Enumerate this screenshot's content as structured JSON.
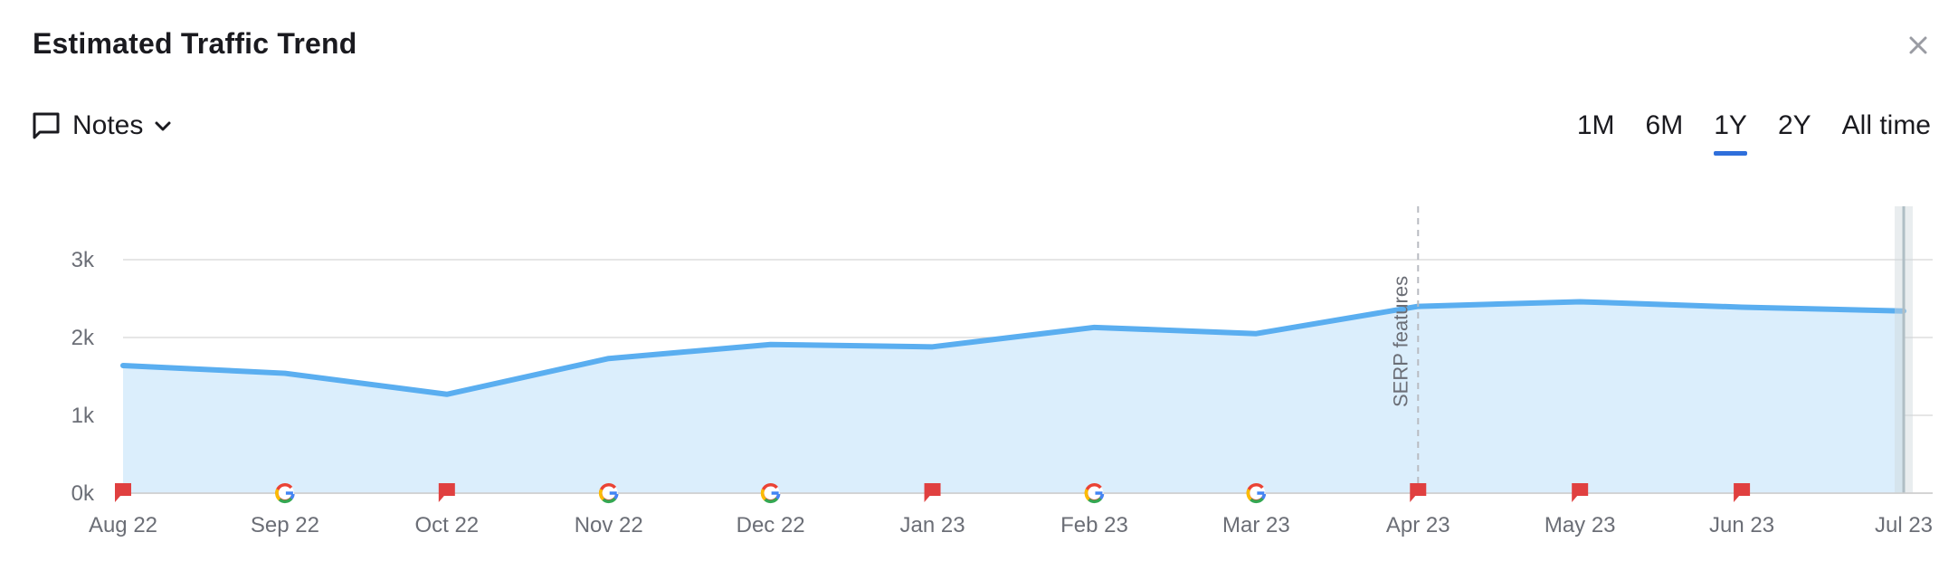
{
  "header": {
    "title": "Estimated Traffic Trend",
    "notes_label": "Notes"
  },
  "time_ranges": [
    {
      "label": "1M",
      "active": false
    },
    {
      "label": "6M",
      "active": false
    },
    {
      "label": "1Y",
      "active": true
    },
    {
      "label": "2Y",
      "active": false
    },
    {
      "label": "All time",
      "active": false
    }
  ],
  "chart_data": {
    "type": "area",
    "categories": [
      "Aug 22",
      "Sep 22",
      "Oct 22",
      "Nov 22",
      "Dec 22",
      "Jan 23",
      "Feb 23",
      "Mar 23",
      "Apr 23",
      "May 23",
      "Jun 23",
      "Jul 23"
    ],
    "series": [
      {
        "values": [
          1640,
          1540,
          1270,
          1730,
          1910,
          1880,
          2130,
          2050,
          2400,
          2460,
          2390,
          2340
        ],
        "color": "#5aaef0"
      }
    ],
    "y_ticks": [
      "0k",
      "1k",
      "2k",
      "3k"
    ],
    "ylim": [
      0,
      3000
    ],
    "grid": true,
    "annotation": {
      "label": "SERP features",
      "at": "Apr 23"
    },
    "markers": [
      "note-flag",
      "google",
      "note-flag",
      "google",
      "google",
      "note-flag",
      "google",
      "google",
      "note-flag",
      "note-flag",
      "note-flag"
    ],
    "colors": {
      "line": "#5aaef0",
      "fill": "#dbeefc",
      "flag": "#e04040",
      "grid": "#dddddd",
      "axis_text": "#6b6e76"
    }
  }
}
